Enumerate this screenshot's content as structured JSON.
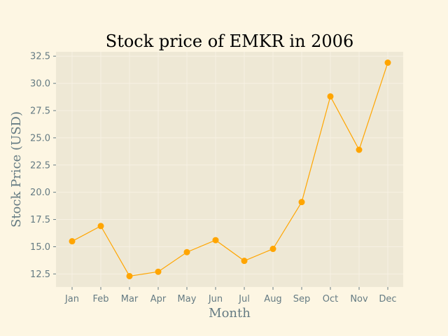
{
  "chart_data": {
    "type": "line",
    "title": "Stock price of EMKR in 2006",
    "xlabel": "Month",
    "ylabel": "Stock Price (USD)",
    "categories": [
      "Jan",
      "Feb",
      "Mar",
      "Apr",
      "May",
      "Jun",
      "Jul",
      "Aug",
      "Sep",
      "Oct",
      "Nov",
      "Dec"
    ],
    "series": [
      {
        "values": [
          15.5,
          16.9,
          12.3,
          12.7,
          14.5,
          15.6,
          13.7,
          14.8,
          19.1,
          28.8,
          23.9,
          31.9
        ]
      }
    ],
    "ylim": [
      11.3,
      32.9
    ],
    "yticks": [
      12.5,
      15.0,
      17.5,
      20.0,
      22.5,
      25.0,
      27.5,
      30.0,
      32.5
    ],
    "grid": true,
    "colors": {
      "background": "#fdf6e3",
      "plot_area": "#eee8d5",
      "line": "#ffa500",
      "tick_text": "#657b83",
      "grid": "#f7f1e3"
    }
  }
}
